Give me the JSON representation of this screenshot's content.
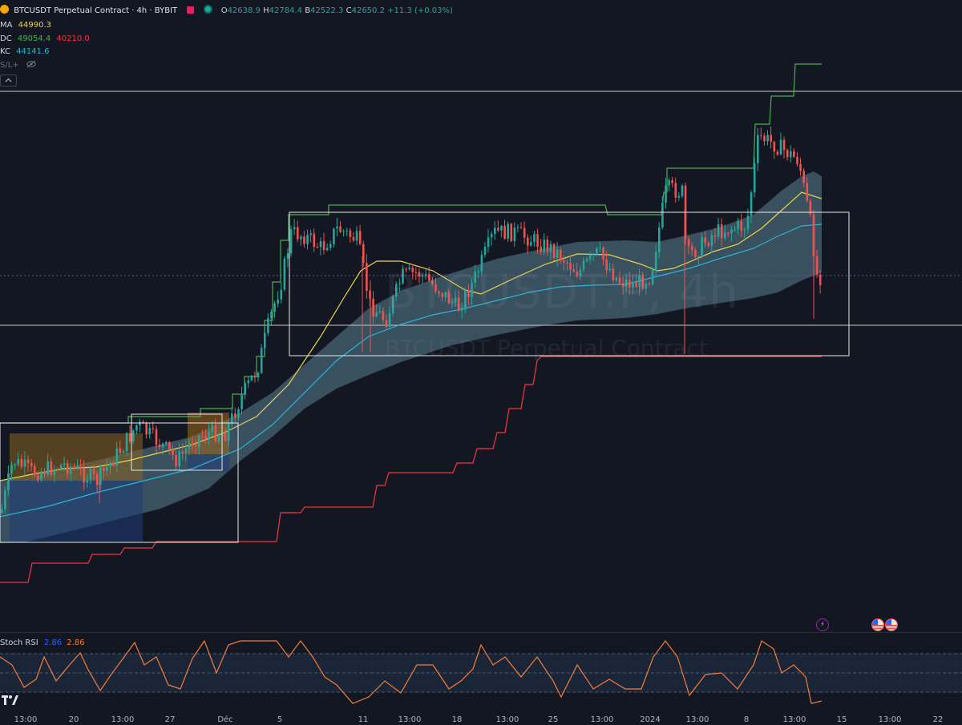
{
  "header": {
    "symbol_title": "BTCUSDT Perpetual Contract · 4h · BYBIT",
    "ohlc": [
      {
        "k": "O",
        "v": "42638.9"
      },
      {
        "k": "H",
        "v": "42784.4"
      },
      {
        "k": "B",
        "v": "42522.3"
      },
      {
        "k": "C",
        "v": "42650.2"
      }
    ],
    "change": "+11.3 (+0.03%)"
  },
  "indicators": {
    "ma": {
      "label": "MA",
      "value": "44990.3"
    },
    "dc": {
      "label": "DC",
      "upper": "49054.4",
      "lower": "40210.0"
    },
    "kc": {
      "label": "KC",
      "value": "44141.6"
    },
    "sl": {
      "label": "S/L+"
    }
  },
  "watermark": {
    "symbol": "BTCUSDT.P, 4h",
    "name": "BTCUSDT Perpetual Contract"
  },
  "stoch_rsi": {
    "label": "Stoch RSI",
    "k": "2.86",
    "d": "2.86"
  },
  "x_axis": [
    {
      "label": "13:00"
    },
    {
      "label": "20"
    },
    {
      "label": "13:00"
    },
    {
      "label": "27"
    },
    {
      "label": "Déc"
    },
    {
      "label": "5"
    },
    {
      "label": "11"
    },
    {
      "label": "13:00"
    },
    {
      "label": "18"
    },
    {
      "label": "13:00"
    },
    {
      "label": "25"
    },
    {
      "label": "13:00"
    },
    {
      "label": "2024"
    },
    {
      "label": "13:00"
    },
    {
      "label": "8"
    },
    {
      "label": "13:00"
    },
    {
      "label": "15"
    },
    {
      "label": "13:00"
    },
    {
      "label": "22"
    }
  ],
  "colors": {
    "bg": "#131722",
    "up": "#26a69a",
    "down": "#ef5350",
    "ma": "#e8d44d",
    "kc_mid": "#2bb5d6",
    "kc_band": "#4a6a77",
    "dc_upper": "#4caf50",
    "dc_lower": "#f23645",
    "stoch_k": "#f57c3a",
    "stoch_zone": "#1e2c3f",
    "box": "#e8e8e8"
  },
  "icons": {
    "lightning": "lightning-icon",
    "flag_us": "flag-us-icon",
    "eye": "eye-off-icon",
    "tv_logo": "tradingview-logo-icon"
  }
}
